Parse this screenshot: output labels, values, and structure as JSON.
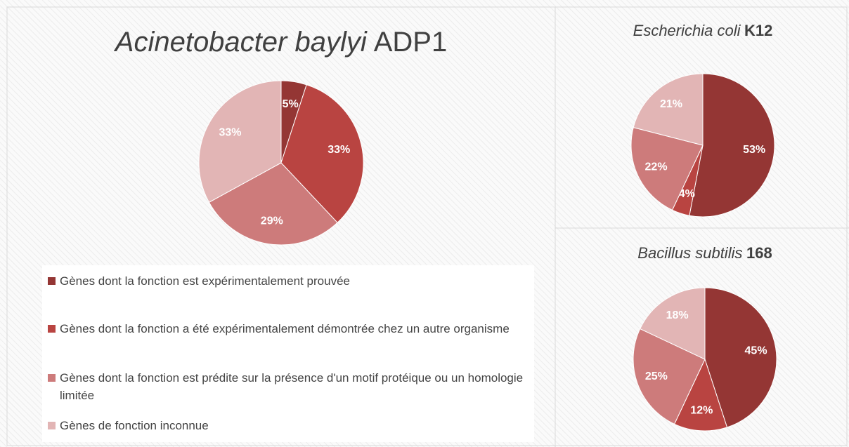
{
  "chart_data": [
    {
      "type": "pie",
      "title": [
        "Acinetobacter baylyi",
        "ADP1"
      ],
      "categories": [
        "Gènes dont la fonction est expérimentalement prouvée",
        "Gènes dont la fonction a été expérimentalement démontrée chez un autre organisme",
        "Gènes dont la fonction est prédite sur la présence d'un motif protéique ou un homologie limitée",
        "Gènes de fonction inconnue"
      ],
      "values": [
        5,
        33,
        29,
        33
      ],
      "value_labels": [
        "5%",
        "33%",
        "29%",
        "33%"
      ],
      "colors": [
        "#943634",
        "#b94441",
        "#cd7b7b",
        "#e2b5b5"
      ]
    },
    {
      "type": "pie",
      "title": [
        "Escherichia coli",
        "K12"
      ],
      "values": [
        53,
        4,
        22,
        21
      ],
      "value_labels": [
        "53%",
        "4%",
        "22%",
        "21%"
      ],
      "colors": [
        "#943634",
        "#b94441",
        "#cd7b7b",
        "#e2b5b5"
      ]
    },
    {
      "type": "pie",
      "title": [
        "Bacillus subtilis",
        "168"
      ],
      "values": [
        45,
        12,
        25,
        18
      ],
      "value_labels": [
        "45%",
        "12%",
        "25%",
        "18%"
      ],
      "colors": [
        "#943634",
        "#b94441",
        "#cd7b7b",
        "#e2b5b5"
      ]
    }
  ]
}
